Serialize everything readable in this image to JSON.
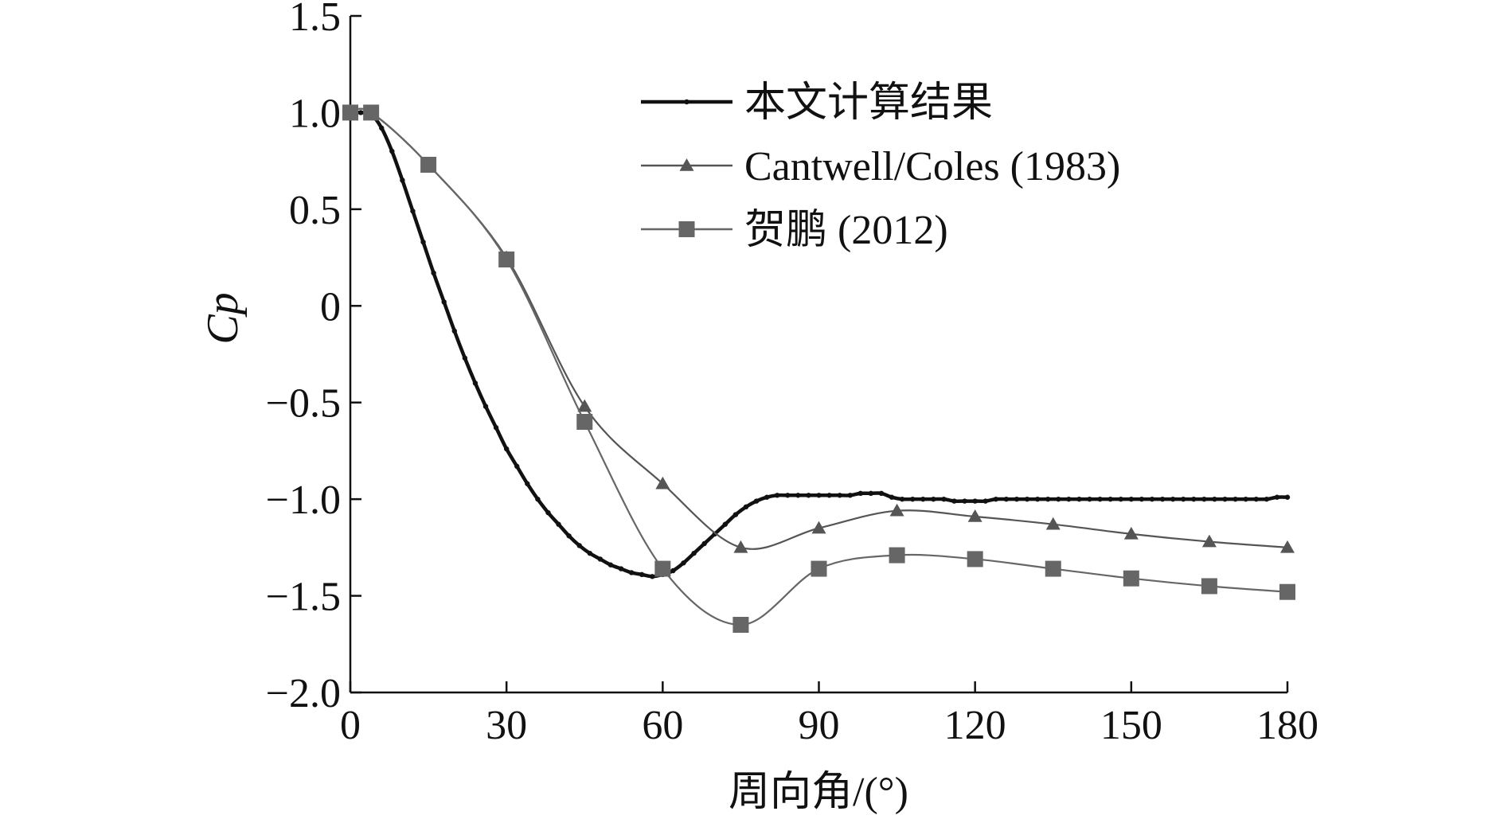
{
  "chart_data": {
    "type": "line",
    "title": "",
    "xlabel": "周向角/(°)",
    "ylabel": "Cp",
    "xlim": [
      0,
      180
    ],
    "ylim": [
      -2.0,
      1.5
    ],
    "xticks": [
      0,
      30,
      60,
      90,
      120,
      150,
      180
    ],
    "xtick_labels": [
      "0",
      "30",
      "60",
      "90",
      "120",
      "150",
      "180"
    ],
    "yticks": [
      1.5,
      1.0,
      0.5,
      0,
      -0.5,
      -1.0,
      -1.5,
      -2.0
    ],
    "ytick_labels": [
      "1.5",
      "1.0",
      "0.5",
      "0",
      "−0.5",
      "−1.0",
      "−1.5",
      "−2.0"
    ],
    "grid": false,
    "legend_position": "top-right",
    "series": [
      {
        "name": "本文计算结果",
        "color": "#111111",
        "marker": "dot",
        "x": [
          0,
          2,
          4,
          6,
          8,
          10,
          12,
          14,
          16,
          18,
          20,
          22,
          24,
          26,
          28,
          30,
          32,
          34,
          36,
          38,
          40,
          42,
          44,
          46,
          48,
          50,
          52,
          54,
          56,
          58,
          60,
          62,
          64,
          66,
          68,
          70,
          72,
          74,
          76,
          78,
          80,
          82,
          84,
          86,
          88,
          90,
          92,
          94,
          96,
          98,
          100,
          102,
          104,
          106,
          108,
          110,
          112,
          114,
          116,
          118,
          120,
          122,
          124,
          126,
          128,
          130,
          132,
          134,
          136,
          138,
          140,
          142,
          144,
          146,
          148,
          150,
          152,
          154,
          156,
          158,
          160,
          162,
          164,
          166,
          168,
          170,
          172,
          174,
          176,
          178,
          180
        ],
        "y": [
          1.0,
          1.0,
          0.99,
          0.92,
          0.8,
          0.65,
          0.49,
          0.33,
          0.17,
          0.02,
          -0.13,
          -0.27,
          -0.4,
          -0.52,
          -0.63,
          -0.74,
          -0.83,
          -0.92,
          -1.0,
          -1.07,
          -1.13,
          -1.19,
          -1.24,
          -1.28,
          -1.31,
          -1.34,
          -1.36,
          -1.38,
          -1.39,
          -1.4,
          -1.39,
          -1.37,
          -1.33,
          -1.28,
          -1.23,
          -1.18,
          -1.13,
          -1.08,
          -1.04,
          -1.01,
          -0.99,
          -0.98,
          -0.98,
          -0.98,
          -0.98,
          -0.98,
          -0.98,
          -0.98,
          -0.98,
          -0.97,
          -0.97,
          -0.97,
          -0.99,
          -1.0,
          -1.0,
          -1.0,
          -1.0,
          -1.0,
          -1.01,
          -1.01,
          -1.01,
          -1.01,
          -1.0,
          -1.0,
          -1.0,
          -1.0,
          -1.0,
          -1.0,
          -1.0,
          -1.0,
          -1.0,
          -1.0,
          -1.0,
          -1.0,
          -1.0,
          -1.0,
          -1.0,
          -1.0,
          -1.0,
          -1.0,
          -1.0,
          -1.0,
          -1.0,
          -1.0,
          -1.0,
          -1.0,
          -1.0,
          -1.0,
          -1.0,
          -0.99,
          -0.99
        ]
      },
      {
        "name": "Cantwell/Coles (1983)",
        "color": "#555555",
        "marker": "triangle",
        "x": [
          0,
          4,
          15,
          30,
          45,
          60,
          75,
          90,
          105,
          120,
          135,
          150,
          165,
          180
        ],
        "y": [
          1.0,
          1.0,
          0.73,
          0.25,
          -0.52,
          -0.92,
          -1.25,
          -1.15,
          -1.06,
          -1.09,
          -1.13,
          -1.18,
          -1.22,
          -1.25
        ]
      },
      {
        "name": "贺鹏 (2012)",
        "color": "#666666",
        "marker": "square",
        "x": [
          0,
          4,
          15,
          30,
          45,
          60,
          75,
          90,
          105,
          120,
          135,
          150,
          165,
          180
        ],
        "y": [
          1.0,
          1.0,
          0.73,
          0.24,
          -0.6,
          -1.36,
          -1.65,
          -1.36,
          -1.29,
          -1.31,
          -1.36,
          -1.41,
          -1.45,
          -1.48
        ]
      }
    ]
  }
}
